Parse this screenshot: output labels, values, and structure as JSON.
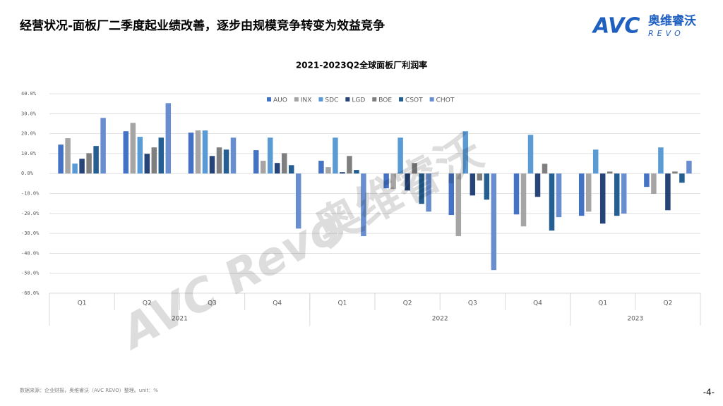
{
  "header": {
    "title": "经营状况-面板厂二季度起业绩改善，逐步由规模竞争转变为效益竞争",
    "logo_mark": "AVC",
    "logo_cn": "奥维睿沃",
    "logo_en": "REVO"
  },
  "watermark": {
    "en": "AVC Revo",
    "cn": "奥维睿沃"
  },
  "chart_data": {
    "type": "bar",
    "title": "2021-2023Q2全球面板厂利润率",
    "categories": [
      "Q1",
      "Q2",
      "Q3",
      "Q4",
      "Q1",
      "Q2",
      "Q3",
      "Q4",
      "Q1",
      "Q2"
    ],
    "groups": [
      {
        "label": "2021",
        "count": 4
      },
      {
        "label": "2022",
        "count": 4
      },
      {
        "label": "2023",
        "count": 2
      }
    ],
    "series": [
      {
        "name": "AUO",
        "color": "#4472c4",
        "values": [
          14.5,
          21.2,
          20.5,
          11.7,
          6.4,
          -7.4,
          -20.8,
          -20.5,
          -21.2,
          -6.7
        ]
      },
      {
        "name": "INX",
        "color": "#a5a5a5",
        "values": [
          17.7,
          25.4,
          21.6,
          6.4,
          3.2,
          -7.8,
          -31.4,
          -26.5,
          -19.1,
          -10.2
        ]
      },
      {
        "name": "SDC",
        "color": "#5b9bd5",
        "values": [
          5.0,
          18.4,
          21.6,
          18.0,
          18.0,
          18.0,
          21.2,
          19.4,
          12.0,
          13.1
        ]
      },
      {
        "name": "LGD",
        "color": "#264478",
        "values": [
          7.4,
          9.9,
          8.8,
          5.3,
          0.7,
          -8.5,
          -11.0,
          -11.7,
          -25.1,
          -18.4
        ]
      },
      {
        "name": "BOE",
        "color": "#7f7f7f",
        "values": [
          10.2,
          13.1,
          13.1,
          10.2,
          8.8,
          5.3,
          -3.5,
          4.9,
          1.0,
          1.0
        ]
      },
      {
        "name": "CSOT",
        "color": "#255e91",
        "values": [
          13.8,
          18.0,
          12.0,
          4.2,
          1.8,
          -15.2,
          -13.1,
          -28.6,
          -21.2,
          -4.6
        ]
      },
      {
        "name": "CHOT",
        "color": "#698ed0",
        "values": [
          27.9,
          35.3,
          18.0,
          -27.6,
          -31.4,
          -19.1,
          -48.4,
          -21.9,
          -20.1,
          6.4
        ]
      }
    ],
    "ylim": [
      -60,
      40
    ],
    "yticks": [
      {
        "value": -60,
        "label": "-60.0%"
      },
      {
        "value": -50,
        "label": "-50.0%"
      },
      {
        "value": -40,
        "label": "-40.0%"
      },
      {
        "value": -30,
        "label": "-30.0%"
      },
      {
        "value": -20,
        "label": "-20.0%"
      },
      {
        "value": -10,
        "label": "-10.0%"
      },
      {
        "value": 0,
        "label": "0.0%"
      },
      {
        "value": 10,
        "label": "10.0%"
      },
      {
        "value": 20,
        "label": "20.0%"
      },
      {
        "value": 30,
        "label": "30.0%"
      },
      {
        "value": 40,
        "label": "40.0%"
      }
    ],
    "grid": true,
    "legend": "top"
  },
  "footer": {
    "source": "数据来源：企业财报，奥维睿沃（AVC REVO）整理。unit：%",
    "page": "-4-"
  }
}
